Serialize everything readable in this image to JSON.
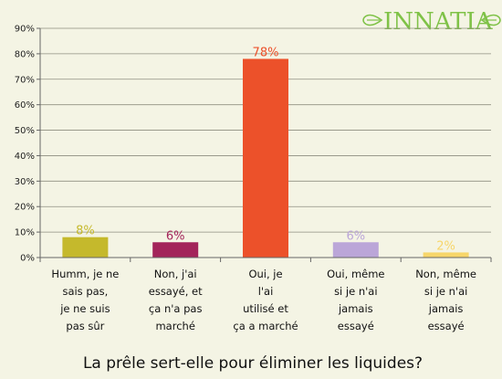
{
  "brand": {
    "name": "INNATIA",
    "color": "#7fc247"
  },
  "chart_data": {
    "type": "bar",
    "title": "La prêle sert-elle pour éliminer les liquides?",
    "categories": [
      [
        "Humm, je ne",
        "sais pas,",
        "je ne suis",
        "pas sûr"
      ],
      [
        "Non, j'ai",
        "essayé, et",
        "ça n'a pas",
        "marché"
      ],
      [
        "Oui, je",
        "l'ai",
        "utilisé et",
        "ça a marché"
      ],
      [
        "Oui, même",
        "si je n'ai",
        "jamais",
        "essayé"
      ],
      [
        "Non, même",
        "si je n'ai",
        "jamais",
        "essayé"
      ]
    ],
    "values": [
      8,
      6,
      78,
      6,
      2
    ],
    "value_labels": [
      "8%",
      "6%",
      "78%",
      "6%",
      "2%"
    ],
    "colors": [
      "#c5b92c",
      "#a3245a",
      "#ec512a",
      "#bba6d8",
      "#f7d66a"
    ],
    "ylim": [
      0,
      90
    ],
    "yticks": [
      0,
      10,
      20,
      30,
      40,
      50,
      60,
      70,
      80,
      90
    ],
    "ytick_labels": [
      "0%",
      "10%",
      "20%",
      "30%",
      "40%",
      "50%",
      "60%",
      "70%",
      "80%",
      "90%"
    ],
    "grid": true
  }
}
